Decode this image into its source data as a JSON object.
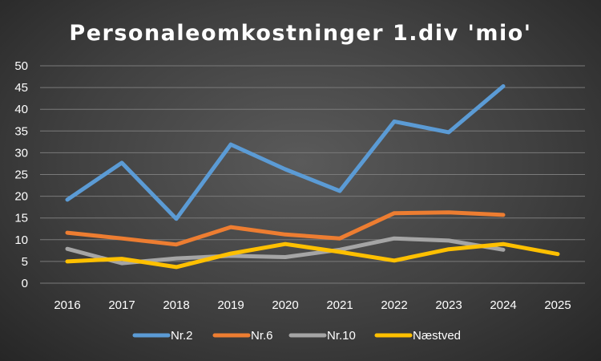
{
  "chart_data": {
    "type": "line",
    "title": "Personaleomkostninger 1.div 'mio'",
    "xlabel": "",
    "ylabel": "",
    "categories": [
      "2016",
      "2017",
      "2018",
      "2019",
      "2020",
      "2021",
      "2022",
      "2023",
      "2024",
      "2025"
    ],
    "ylim": [
      0,
      50
    ],
    "yticks": [
      0,
      5,
      10,
      15,
      20,
      25,
      30,
      35,
      40,
      45,
      50
    ],
    "grid": true,
    "legend": "bottom",
    "series": [
      {
        "name": "Nr.2",
        "color": "#5b9bd5",
        "values": [
          19.2,
          27.7,
          14.8,
          31.9,
          26.2,
          21.2,
          37.2,
          34.7,
          45.3,
          null
        ]
      },
      {
        "name": "Nr.6",
        "color": "#ed7d31",
        "values": [
          11.6,
          10.3,
          8.9,
          12.9,
          11.2,
          10.3,
          16.1,
          16.3,
          15.7,
          null
        ]
      },
      {
        "name": "Nr.10",
        "color": "#a5a5a5",
        "values": [
          7.9,
          4.6,
          5.7,
          6.3,
          6.0,
          7.7,
          10.3,
          9.8,
          7.7,
          null
        ]
      },
      {
        "name": "Næstved",
        "color": "#ffc000",
        "values": [
          5.0,
          5.6,
          3.7,
          6.8,
          9.0,
          7.2,
          5.2,
          7.8,
          9.0,
          6.7
        ]
      }
    ]
  }
}
